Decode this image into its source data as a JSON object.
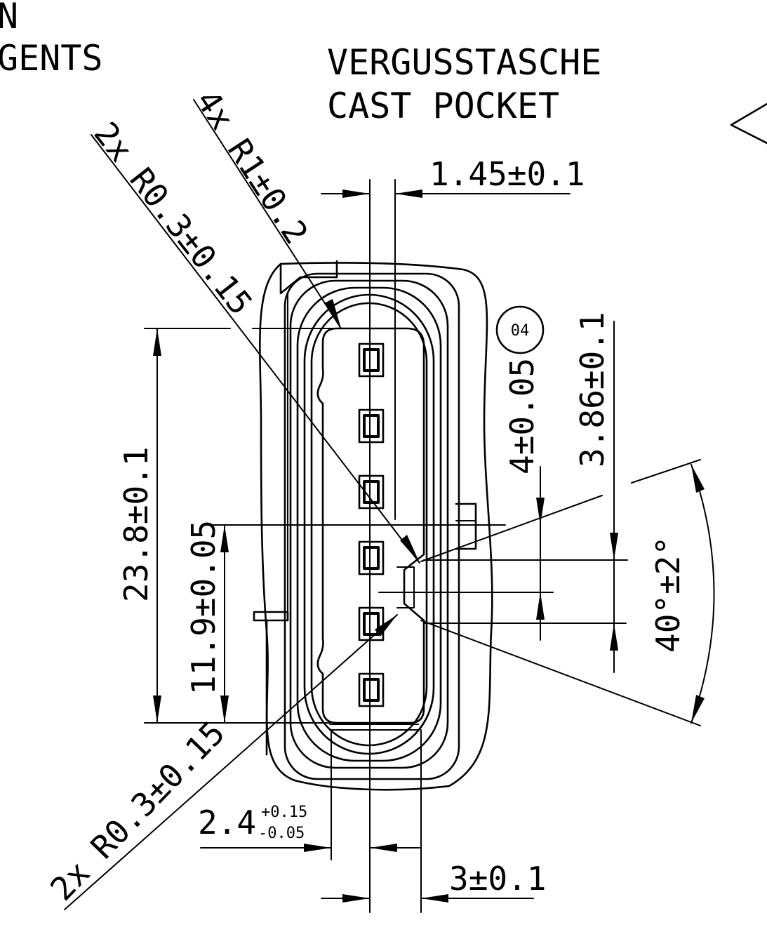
{
  "title_lines": [
    "VERGUSSTASCHE",
    "CAST POCKET"
  ],
  "partial_text_left": [
    "N",
    "GENTS"
  ],
  "dimensions": {
    "top_width": "1.45±0.1",
    "bottom_width": "3±0.1",
    "slot_width": "2.4",
    "slot_tol_upper": "+0.15",
    "slot_tol_lower": "-0.05",
    "height_total": "23.8±0.1",
    "height_half": "11.9±0.05",
    "key_offset": "4±0.05",
    "key_height": "3.86±0.1",
    "angle": "40°±2°"
  },
  "radius_callouts": {
    "top_right": "4x R1±0.2",
    "top_left": "2x R0.3±0.15",
    "bottom_left": "2x R0.3±0.15"
  },
  "position_balloon": "04",
  "pin_count": 6
}
